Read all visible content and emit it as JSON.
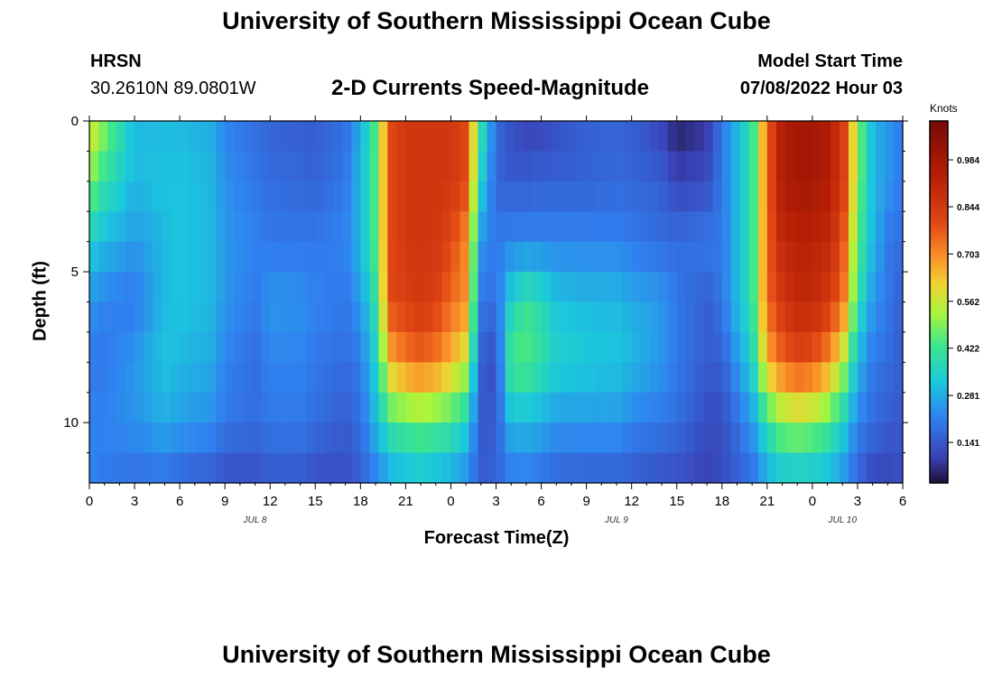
{
  "header": {
    "title": "University of Southern Mississippi Ocean Cube",
    "station": "HRSN",
    "coords": "30.2610N  89.0801W",
    "subtitle": "2-D Currents Speed-Magnitude",
    "model_label": "Model Start Time",
    "model_time": "07/08/2022 Hour 03"
  },
  "footer": {
    "title": "University of Southern Mississippi Ocean Cube"
  },
  "chart_data": {
    "type": "heatmap",
    "xlabel": "Forecast Time(Z)",
    "ylabel": "Depth (ft)",
    "x_ticks": [
      "0",
      "3",
      "6",
      "9",
      "12",
      "15",
      "18",
      "21",
      "0",
      "3",
      "6",
      "9",
      "12",
      "15",
      "18",
      "21",
      "0",
      "3",
      "6"
    ],
    "date_labels": [
      {
        "text": "JUL 8",
        "hour": 11
      },
      {
        "text": "JUL 9",
        "hour": 35
      },
      {
        "text": "JUL 10",
        "hour": 50
      }
    ],
    "y_ticks": [
      0,
      5,
      10
    ],
    "ylim": [
      0,
      12
    ],
    "x_range_hours": [
      0,
      54
    ],
    "colorbar": {
      "units": "Knots",
      "ticks": [
        0.141,
        0.281,
        0.422,
        0.562,
        0.703,
        0.844,
        0.984
      ],
      "range": [
        0.02,
        1.1
      ]
    },
    "speed_grid": {
      "depths_ft": [
        0,
        2,
        4,
        6,
        8,
        10,
        12
      ],
      "hours": [
        0,
        1,
        3,
        5,
        6,
        8,
        9,
        11,
        12,
        14,
        15,
        17,
        18,
        19,
        20,
        21,
        22,
        23,
        24,
        25,
        26,
        27,
        28,
        29,
        30,
        31,
        33,
        35,
        36,
        38,
        39,
        41,
        42,
        44,
        45,
        46,
        47,
        48,
        49,
        50,
        51,
        52,
        53,
        54
      ],
      "values": [
        [
          0.6,
          0.5,
          0.3,
          0.3,
          0.3,
          0.28,
          0.22,
          0.18,
          0.16,
          0.15,
          0.15,
          0.18,
          0.28,
          0.45,
          0.8,
          0.85,
          0.85,
          0.85,
          0.85,
          0.8,
          0.4,
          0.18,
          0.12,
          0.1,
          0.1,
          0.12,
          0.16,
          0.16,
          0.15,
          0.1,
          0.04,
          0.08,
          0.2,
          0.4,
          0.75,
          0.95,
          0.98,
          0.98,
          0.95,
          0.85,
          0.5,
          0.3,
          0.25,
          0.2
        ],
        [
          0.5,
          0.4,
          0.3,
          0.32,
          0.32,
          0.3,
          0.24,
          0.2,
          0.18,
          0.17,
          0.16,
          0.2,
          0.3,
          0.45,
          0.8,
          0.85,
          0.85,
          0.85,
          0.85,
          0.8,
          0.35,
          0.16,
          0.15,
          0.15,
          0.16,
          0.16,
          0.16,
          0.17,
          0.17,
          0.15,
          0.1,
          0.12,
          0.2,
          0.4,
          0.75,
          0.95,
          0.98,
          0.98,
          0.95,
          0.85,
          0.5,
          0.3,
          0.25,
          0.2
        ],
        [
          0.35,
          0.3,
          0.25,
          0.3,
          0.32,
          0.3,
          0.25,
          0.22,
          0.2,
          0.2,
          0.2,
          0.22,
          0.3,
          0.45,
          0.8,
          0.85,
          0.85,
          0.85,
          0.8,
          0.7,
          0.25,
          0.2,
          0.22,
          0.22,
          0.22,
          0.22,
          0.22,
          0.22,
          0.2,
          0.18,
          0.18,
          0.2,
          0.2,
          0.4,
          0.75,
          0.9,
          0.92,
          0.92,
          0.9,
          0.8,
          0.45,
          0.3,
          0.2,
          0.18
        ],
        [
          0.25,
          0.22,
          0.2,
          0.3,
          0.32,
          0.3,
          0.25,
          0.2,
          0.25,
          0.24,
          0.22,
          0.2,
          0.25,
          0.4,
          0.8,
          0.82,
          0.85,
          0.82,
          0.75,
          0.7,
          0.2,
          0.18,
          0.35,
          0.42,
          0.38,
          0.32,
          0.3,
          0.3,
          0.28,
          0.25,
          0.2,
          0.15,
          0.2,
          0.4,
          0.75,
          0.85,
          0.9,
          0.9,
          0.85,
          0.75,
          0.4,
          0.25,
          0.2,
          0.15
        ],
        [
          0.2,
          0.2,
          0.25,
          0.32,
          0.3,
          0.28,
          0.22,
          0.18,
          0.22,
          0.22,
          0.2,
          0.18,
          0.2,
          0.35,
          0.65,
          0.72,
          0.75,
          0.72,
          0.65,
          0.55,
          0.15,
          0.12,
          0.45,
          0.45,
          0.4,
          0.35,
          0.33,
          0.32,
          0.3,
          0.25,
          0.2,
          0.15,
          0.15,
          0.35,
          0.65,
          0.75,
          0.8,
          0.78,
          0.7,
          0.55,
          0.3,
          0.2,
          0.18,
          0.15
        ],
        [
          0.22,
          0.22,
          0.24,
          0.28,
          0.26,
          0.24,
          0.2,
          0.18,
          0.2,
          0.2,
          0.18,
          0.15,
          0.18,
          0.3,
          0.42,
          0.45,
          0.47,
          0.45,
          0.42,
          0.35,
          0.14,
          0.15,
          0.3,
          0.3,
          0.28,
          0.25,
          0.25,
          0.25,
          0.22,
          0.2,
          0.18,
          0.12,
          0.12,
          0.25,
          0.4,
          0.5,
          0.52,
          0.5,
          0.45,
          0.35,
          0.22,
          0.18,
          0.15,
          0.14
        ],
        [
          0.22,
          0.2,
          0.18,
          0.18,
          0.16,
          0.14,
          0.12,
          0.12,
          0.14,
          0.14,
          0.12,
          0.12,
          0.15,
          0.2,
          0.26,
          0.28,
          0.3,
          0.28,
          0.26,
          0.22,
          0.15,
          0.16,
          0.2,
          0.2,
          0.18,
          0.16,
          0.15,
          0.15,
          0.14,
          0.12,
          0.12,
          0.1,
          0.12,
          0.18,
          0.26,
          0.3,
          0.3,
          0.3,
          0.28,
          0.24,
          0.16,
          0.1,
          0.1,
          0.12
        ]
      ]
    }
  }
}
